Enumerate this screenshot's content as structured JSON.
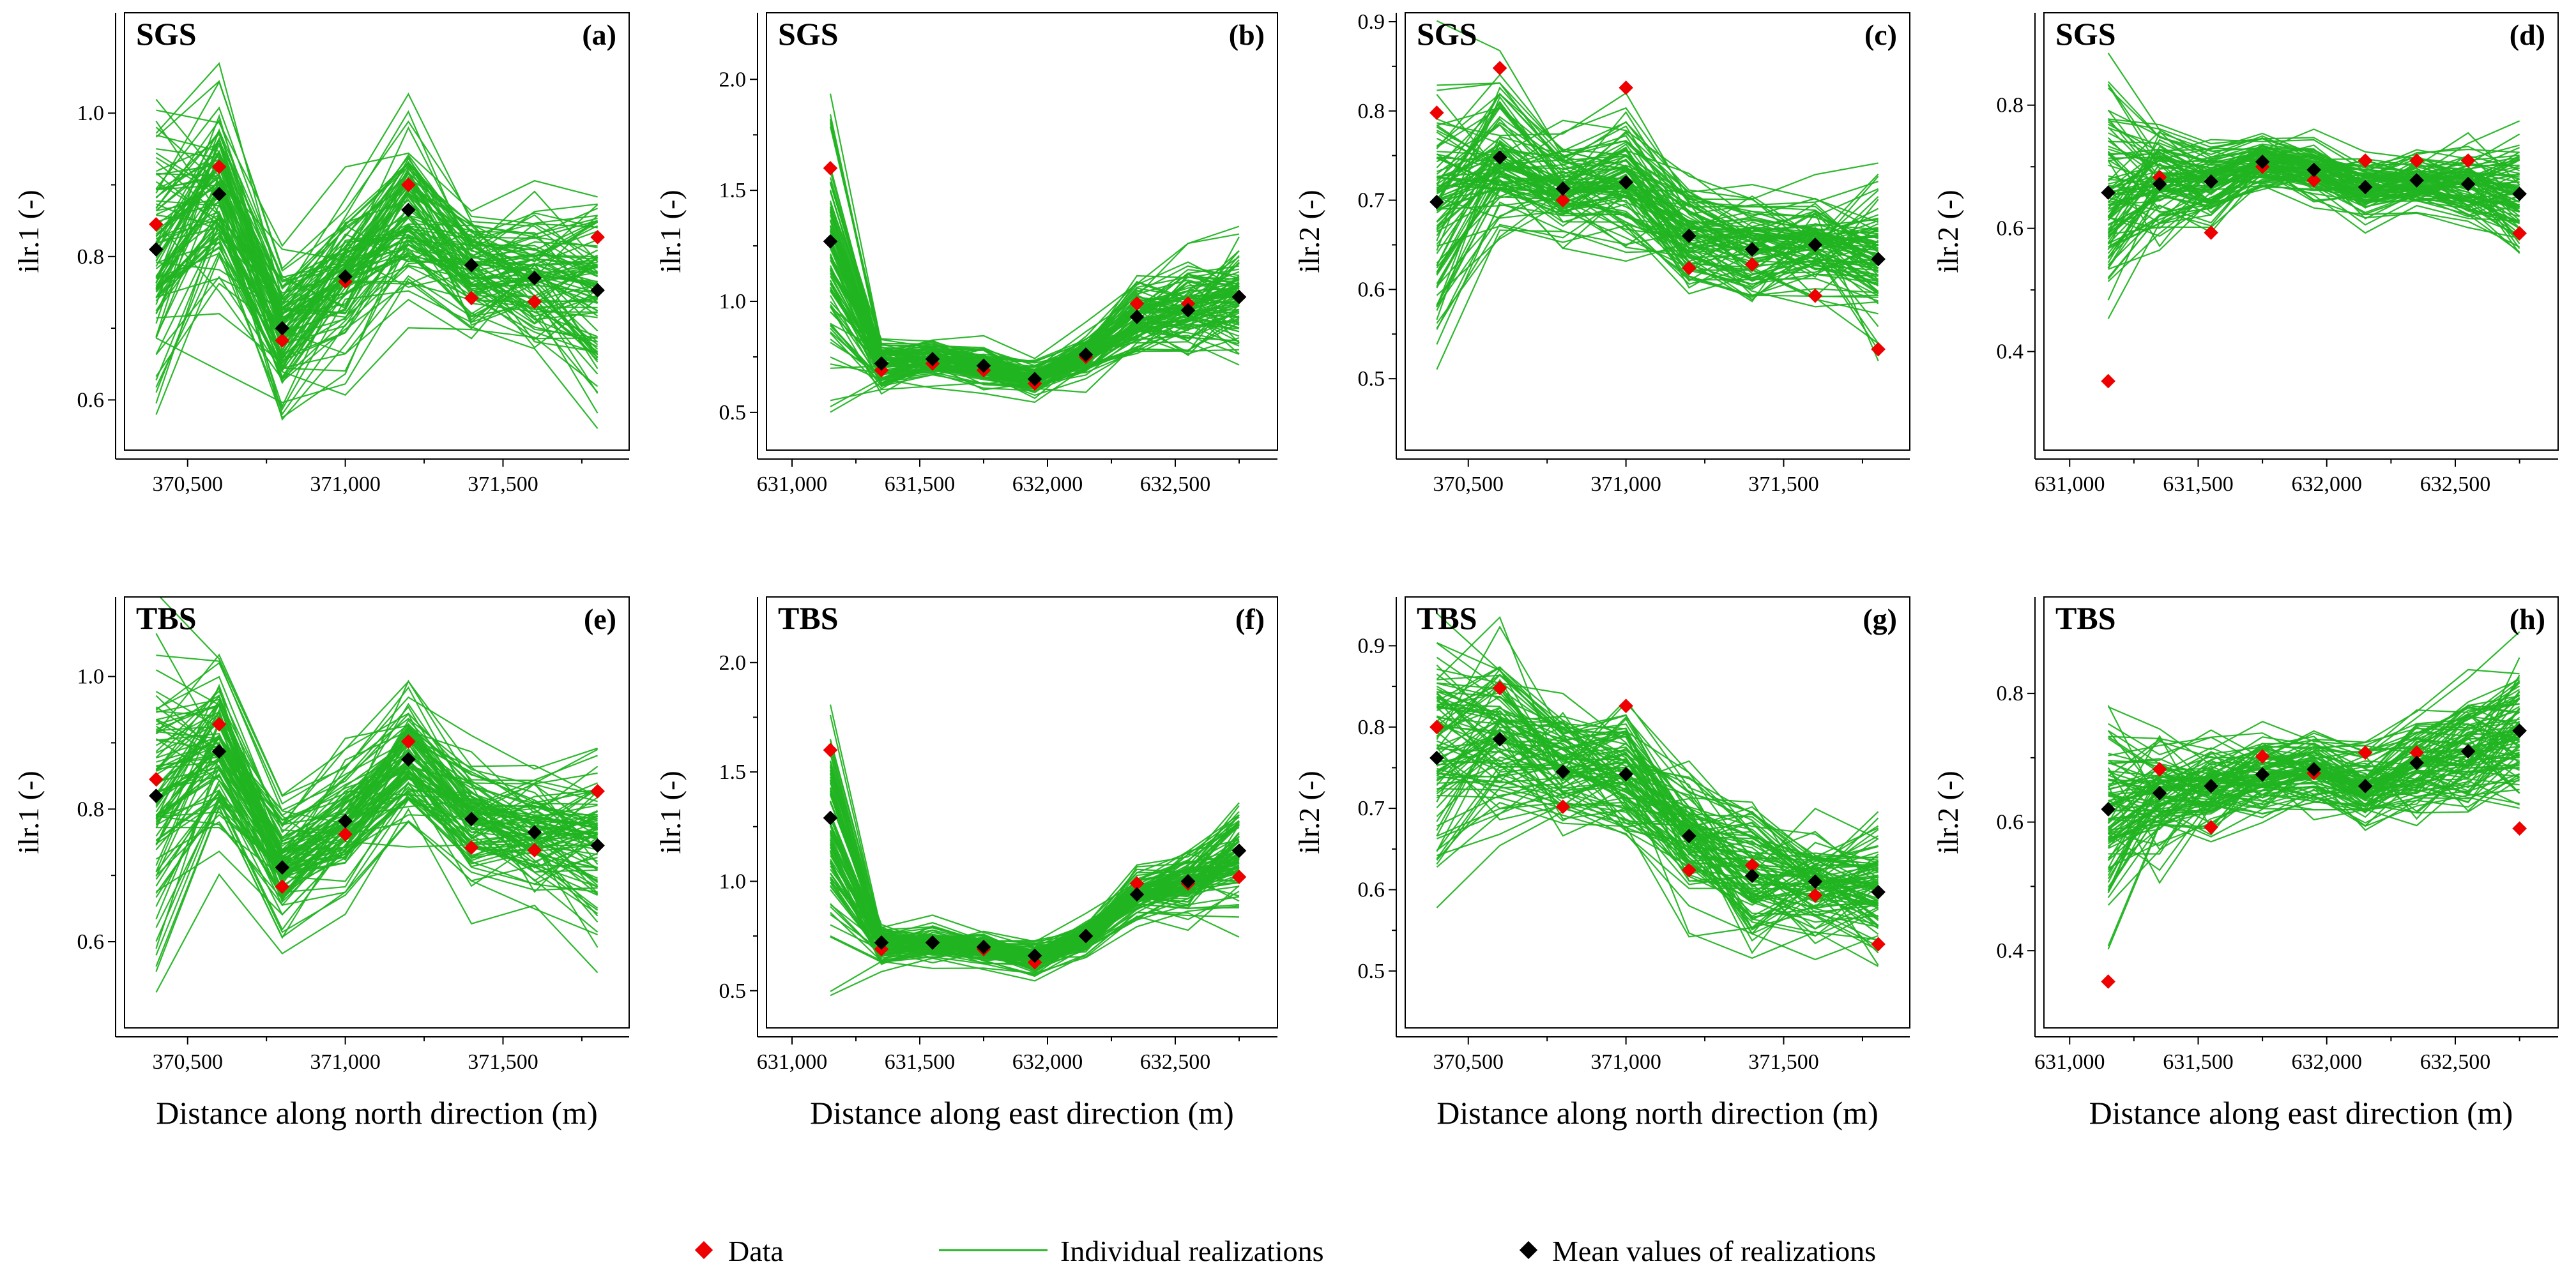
{
  "figure": {
    "legend": {
      "data_label": "Data",
      "realizations_label": "Individual realizations",
      "mean_label": "Mean values of realizations"
    },
    "colors": {
      "data": "#ee0000",
      "realizations": "#22b422",
      "mean": "#000000"
    }
  },
  "chart_data": [
    {
      "id": "a",
      "type": "line",
      "method": "SGS",
      "letter": "(a)",
      "ylabel": "ilr.1 (-)",
      "xlabel": "",
      "xlim": [
        370300,
        371900
      ],
      "ylim": [
        0.53,
        1.14
      ],
      "xticks": [
        370500,
        371000,
        371500
      ],
      "xtick_labels": [
        "370,500",
        "371,000",
        "371,500"
      ],
      "xminor": [
        370250,
        370750,
        371250,
        371750
      ],
      "yticks": [
        0.6,
        0.8,
        1.0
      ],
      "ytick_labels": [
        "0.6",
        "0.8",
        "1.0"
      ],
      "x": [
        370400,
        370600,
        370800,
        371000,
        371200,
        371400,
        371600,
        371800
      ],
      "data": [
        0.845,
        0.925,
        0.683,
        0.765,
        0.9,
        0.742,
        0.737,
        0.827
      ],
      "mean": [
        0.81,
        0.887,
        0.7,
        0.772,
        0.865,
        0.788,
        0.77,
        0.753
      ],
      "spread": [
        0.12,
        0.1,
        0.08,
        0.07,
        0.08,
        0.06,
        0.06,
        0.09
      ],
      "n_realizations": 100
    },
    {
      "id": "b",
      "type": "line",
      "method": "SGS",
      "letter": "(b)",
      "ylabel": "ilr.1 (-)",
      "xlabel": "",
      "xlim": [
        630900,
        632900
      ],
      "ylim": [
        0.33,
        2.3
      ],
      "xticks": [
        631000,
        631500,
        632000,
        632500
      ],
      "xtick_labels": [
        "631,000",
        "631,500",
        "632,000",
        "632,500"
      ],
      "xminor": [
        631250,
        631750,
        632250,
        632750
      ],
      "yticks": [
        0.5,
        1.0,
        1.5,
        2.0
      ],
      "ytick_labels": [
        "0.5",
        "1.0",
        "1.5",
        "2.0"
      ],
      "x": [
        631150,
        631350,
        631550,
        631750,
        631950,
        632150,
        632350,
        632550,
        632750
      ],
      "data": [
        1.6,
        0.69,
        0.72,
        0.69,
        0.63,
        0.75,
        0.99,
        0.99,
        1.02
      ],
      "mean": [
        1.27,
        0.72,
        0.74,
        0.71,
        0.65,
        0.76,
        0.93,
        0.96,
        1.02
      ],
      "spread": [
        0.35,
        0.07,
        0.06,
        0.06,
        0.05,
        0.06,
        0.1,
        0.14,
        0.2
      ],
      "n_realizations": 100
    },
    {
      "id": "c",
      "type": "line",
      "method": "SGS",
      "letter": "(c)",
      "ylabel": "ilr.2 (-)",
      "xlabel": "",
      "xlim": [
        370300,
        371900
      ],
      "ylim": [
        0.42,
        0.91
      ],
      "xticks": [
        370500,
        371000,
        371500
      ],
      "xtick_labels": [
        "370,500",
        "371,000",
        "371,500"
      ],
      "xminor": [
        370250,
        370750,
        371250,
        371750
      ],
      "yticks": [
        0.5,
        0.6,
        0.7,
        0.8,
        0.9
      ],
      "ytick_labels": [
        "0.5",
        "0.6",
        "0.7",
        "0.8",
        "0.9"
      ],
      "x": [
        370400,
        370600,
        370800,
        371000,
        371200,
        371400,
        371600,
        371800
      ],
      "data": [
        0.798,
        0.848,
        0.7,
        0.826,
        0.624,
        0.628,
        0.593,
        0.533
      ],
      "mean": [
        0.698,
        0.748,
        0.713,
        0.72,
        0.66,
        0.645,
        0.65,
        0.634
      ],
      "spread": [
        0.1,
        0.06,
        0.04,
        0.05,
        0.04,
        0.04,
        0.04,
        0.06
      ],
      "n_realizations": 100
    },
    {
      "id": "d",
      "type": "line",
      "method": "SGS",
      "letter": "(d)",
      "ylabel": "ilr.2 (-)",
      "xlabel": "",
      "xlim": [
        630900,
        632900
      ],
      "ylim": [
        0.24,
        0.95
      ],
      "xticks": [
        631000,
        631500,
        632000,
        632500
      ],
      "xtick_labels": [
        "631,000",
        "631,500",
        "632,000",
        "632,500"
      ],
      "xminor": [
        631250,
        631750,
        632250,
        632750
      ],
      "yticks": [
        0.4,
        0.6,
        0.8
      ],
      "ytick_labels": [
        "0.4",
        "0.6",
        "0.8"
      ],
      "x": [
        631150,
        631350,
        631550,
        631750,
        631950,
        632150,
        632350,
        632550,
        632750
      ],
      "data": [
        0.352,
        0.683,
        0.593,
        0.7,
        0.678,
        0.71,
        0.71,
        0.71,
        0.592
      ],
      "mean": [
        0.658,
        0.672,
        0.676,
        0.708,
        0.695,
        0.667,
        0.678,
        0.672,
        0.656
      ],
      "spread": [
        0.14,
        0.06,
        0.04,
        0.03,
        0.03,
        0.03,
        0.03,
        0.04,
        0.06
      ],
      "n_realizations": 100
    },
    {
      "id": "e",
      "type": "line",
      "method": "TBS",
      "letter": "(e)",
      "ylabel": "ilr.1 (-)",
      "xlabel": "Distance along north direction (m)",
      "xlim": [
        370300,
        371900
      ],
      "ylim": [
        0.47,
        1.12
      ],
      "xticks": [
        370500,
        371000,
        371500
      ],
      "xtick_labels": [
        "370,500",
        "371,000",
        "371,500"
      ],
      "xminor": [
        370250,
        370750,
        371250,
        371750
      ],
      "yticks": [
        0.6,
        0.8,
        1.0
      ],
      "ytick_labels": [
        "0.6",
        "0.8",
        "1.0"
      ],
      "x": [
        370400,
        370600,
        370800,
        371000,
        371200,
        371400,
        371600,
        371800
      ],
      "data": [
        0.845,
        0.928,
        0.683,
        0.762,
        0.902,
        0.742,
        0.738,
        0.827
      ],
      "mean": [
        0.82,
        0.887,
        0.712,
        0.782,
        0.875,
        0.785,
        0.765,
        0.745
      ],
      "spread": [
        0.14,
        0.09,
        0.06,
        0.06,
        0.06,
        0.06,
        0.06,
        0.08
      ],
      "n_realizations": 100
    },
    {
      "id": "f",
      "type": "line",
      "method": "TBS",
      "letter": "(f)",
      "ylabel": "ilr.1 (-)",
      "xlabel": "Distance along east direction (m)",
      "xlim": [
        630900,
        632900
      ],
      "ylim": [
        0.33,
        2.3
      ],
      "xticks": [
        631000,
        631500,
        632000,
        632500
      ],
      "xtick_labels": [
        "631,000",
        "631,500",
        "632,000",
        "632,500"
      ],
      "xminor": [
        631250,
        631750,
        632250,
        632750
      ],
      "yticks": [
        0.5,
        1.0,
        1.5,
        2.0
      ],
      "ytick_labels": [
        "0.5",
        "1.0",
        "1.5",
        "2.0"
      ],
      "x": [
        631150,
        631350,
        631550,
        631750,
        631950,
        632150,
        632350,
        632550,
        632750
      ],
      "data": [
        1.6,
        0.69,
        0.72,
        0.69,
        0.63,
        0.75,
        0.99,
        0.99,
        1.02
      ],
      "mean": [
        1.29,
        0.72,
        0.72,
        0.7,
        0.66,
        0.75,
        0.94,
        1.0,
        1.14
      ],
      "spread": [
        0.35,
        0.06,
        0.05,
        0.05,
        0.05,
        0.05,
        0.07,
        0.1,
        0.16
      ],
      "n_realizations": 100
    },
    {
      "id": "g",
      "type": "line",
      "method": "TBS",
      "letter": "(g)",
      "ylabel": "ilr.2 (-)",
      "xlabel": "Distance along north direction (m)",
      "xlim": [
        370300,
        371900
      ],
      "ylim": [
        0.43,
        0.96
      ],
      "xticks": [
        370500,
        371000,
        371500
      ],
      "xtick_labels": [
        "370,500",
        "371,000",
        "371,500"
      ],
      "xminor": [
        370250,
        370750,
        371250,
        371750
      ],
      "yticks": [
        0.5,
        0.6,
        0.7,
        0.8,
        0.9
      ],
      "ytick_labels": [
        "0.5",
        "0.6",
        "0.7",
        "0.8",
        "0.9"
      ],
      "x": [
        370400,
        370600,
        370800,
        371000,
        371200,
        371400,
        371600,
        371800
      ],
      "data": [
        0.8,
        0.848,
        0.702,
        0.826,
        0.624,
        0.63,
        0.593,
        0.533
      ],
      "mean": [
        0.762,
        0.785,
        0.745,
        0.742,
        0.666,
        0.617,
        0.61,
        0.597
      ],
      "spread": [
        0.1,
        0.07,
        0.06,
        0.06,
        0.06,
        0.06,
        0.05,
        0.06
      ],
      "n_realizations": 100
    },
    {
      "id": "h",
      "type": "line",
      "method": "TBS",
      "letter": "(h)",
      "ylabel": "ilr.2 (-)",
      "xlabel": "Distance along east direction (m)",
      "xlim": [
        630900,
        632900
      ],
      "ylim": [
        0.28,
        0.95
      ],
      "xticks": [
        631000,
        631500,
        632000,
        632500
      ],
      "xtick_labels": [
        "631,000",
        "631,500",
        "632,000",
        "632,500"
      ],
      "xminor": [
        631250,
        631750,
        632250,
        632750
      ],
      "yticks": [
        0.4,
        0.6,
        0.8
      ],
      "ytick_labels": [
        "0.4",
        "0.6",
        "0.8"
      ],
      "x": [
        631150,
        631350,
        631550,
        631750,
        631950,
        632150,
        632350,
        632550,
        632750
      ],
      "data": [
        0.352,
        0.682,
        0.592,
        0.702,
        0.676,
        0.708,
        0.708,
        0.71,
        0.59
      ],
      "mean": [
        0.62,
        0.645,
        0.656,
        0.674,
        0.682,
        0.656,
        0.692,
        0.71,
        0.742
      ],
      "spread": [
        0.12,
        0.06,
        0.05,
        0.04,
        0.04,
        0.04,
        0.05,
        0.06,
        0.08
      ],
      "n_realizations": 100
    }
  ]
}
